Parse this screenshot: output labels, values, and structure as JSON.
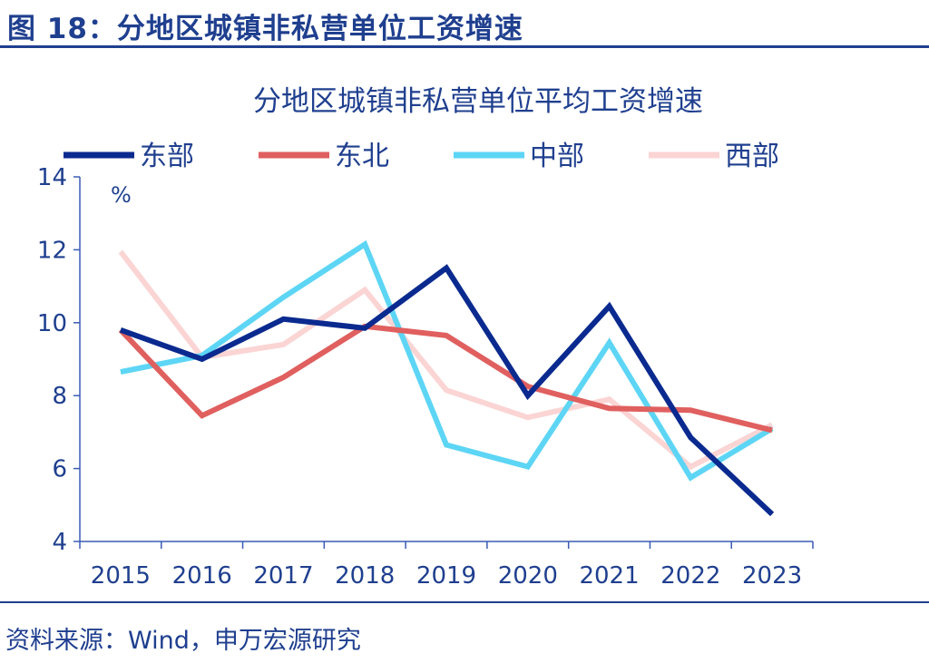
{
  "figure": {
    "label": "图 18：分地区城镇非私营单位工资增速",
    "source": "资料来源：Wind，申万宏源研究"
  },
  "colors": {
    "text": "#1f3f8f",
    "axis": "#3a5bb5"
  },
  "chart_data": {
    "type": "line",
    "title": "分地区城镇非私营单位平均工资增速",
    "ylabel": "%",
    "xlabel": "",
    "x": [
      "2015",
      "2016",
      "2017",
      "2018",
      "2019",
      "2020",
      "2021",
      "2022",
      "2023"
    ],
    "ylim": [
      4,
      14
    ],
    "yticks": [
      4,
      6,
      8,
      10,
      12,
      14
    ],
    "grid": false,
    "legend_position": "top",
    "series": [
      {
        "name": "东部",
        "color": "#0a2a8f",
        "values": [
          9.8,
          9.0,
          10.1,
          9.85,
          11.5,
          8.0,
          10.45,
          6.85,
          4.75
        ]
      },
      {
        "name": "东北",
        "color": "#e05f5f",
        "values": [
          9.8,
          7.45,
          8.5,
          9.9,
          9.65,
          8.25,
          7.65,
          7.6,
          7.05
        ]
      },
      {
        "name": "中部",
        "color": "#5dd5f5",
        "values": [
          8.65,
          9.1,
          10.7,
          12.15,
          6.65,
          6.05,
          9.45,
          5.75,
          7.1
        ]
      },
      {
        "name": "西部",
        "color": "#fbd4d4",
        "values": [
          11.95,
          9.05,
          9.4,
          10.9,
          8.15,
          7.4,
          7.9,
          6.05,
          7.2
        ]
      }
    ]
  }
}
